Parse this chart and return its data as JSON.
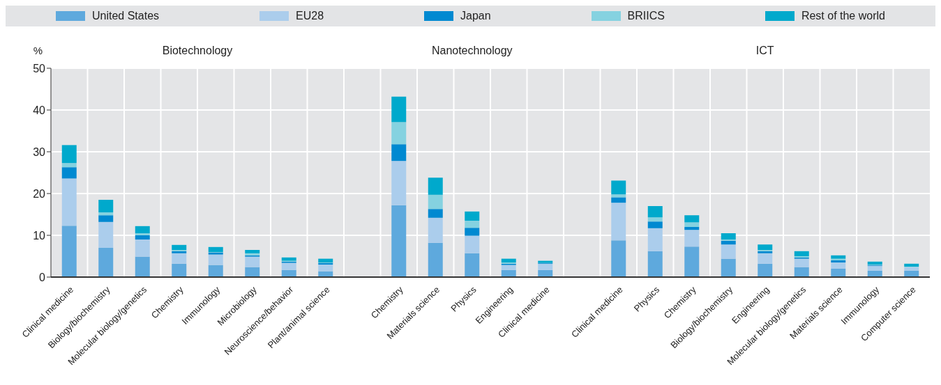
{
  "chart_data": {
    "type": "bar",
    "stacked": true,
    "ylabel": "%",
    "categories": [
      "Clinical medicine",
      "Biology/biochemistry",
      "Molecular biology/genetics",
      "Chemistry",
      "Immunology",
      "Microbiology",
      "Neuroscience/behavior",
      "Plant/animal science",
      null,
      "Chemistry",
      "Materials science",
      "Physics",
      "Engineering",
      "Clinical medicine",
      null,
      "Clinical medicine",
      "Physics",
      "Chemistry",
      "Biology/biochemistry",
      "Engineering",
      "Molecular biology/genetics",
      "Materials science",
      "Immunology",
      "Computer science"
    ],
    "series": [
      {
        "name": "United States",
        "color": "#5ea9dd",
        "values": [
          12.3,
          7.0,
          4.9,
          3.2,
          2.9,
          2.4,
          1.7,
          1.4,
          null,
          17.2,
          8.2,
          5.7,
          1.7,
          1.7,
          null,
          8.8,
          6.2,
          7.3,
          4.4,
          3.2,
          2.4,
          2.0,
          1.5,
          1.5
        ]
      },
      {
        "name": "EU28",
        "color": "#abcdec",
        "values": [
          11.3,
          6.2,
          4.1,
          2.5,
          2.5,
          2.5,
          1.7,
          1.6,
          null,
          10.6,
          6.0,
          4.2,
          1.2,
          1.5,
          null,
          9.0,
          5.5,
          4.0,
          3.4,
          2.5,
          2.0,
          1.5,
          1.2,
          0.9
        ]
      },
      {
        "name": "Japan",
        "color": "#0089d1",
        "values": [
          2.7,
          1.6,
          1.0,
          0.5,
          0.5,
          0.3,
          0.3,
          0.4,
          null,
          4.0,
          2.1,
          1.9,
          0.3,
          0.2,
          null,
          1.3,
          1.6,
          0.7,
          0.9,
          0.5,
          0.3,
          0.5,
          0.2,
          0
        ]
      },
      {
        "name": "BRIICS",
        "color": "#85d2e0",
        "values": [
          1.0,
          0.7,
          0.5,
          0.3,
          0.1,
          0.5,
          0.2,
          0.1,
          null,
          5.3,
          3.4,
          1.7,
          0.3,
          0,
          null,
          0.7,
          1.0,
          1.1,
          0.3,
          0.3,
          0.3,
          0.4,
          0.1,
          0.1
        ]
      },
      {
        "name": "Rest of the world",
        "color": "#00a9cc",
        "values": [
          4.3,
          3.0,
          1.7,
          1.2,
          1.2,
          0.8,
          0.8,
          0.9,
          null,
          6.1,
          4.1,
          2.2,
          0.9,
          0.5,
          null,
          3.3,
          2.7,
          1.7,
          1.5,
          1.3,
          1.2,
          0.8,
          0.7,
          0.7
        ]
      }
    ],
    "ylim": [
      0,
      50
    ],
    "yticks": [
      0,
      10,
      20,
      30,
      40,
      50
    ],
    "grid": true,
    "legend": "top",
    "annotations": [
      "Biotechnology",
      "Nanotechnology",
      "ICT"
    ]
  }
}
